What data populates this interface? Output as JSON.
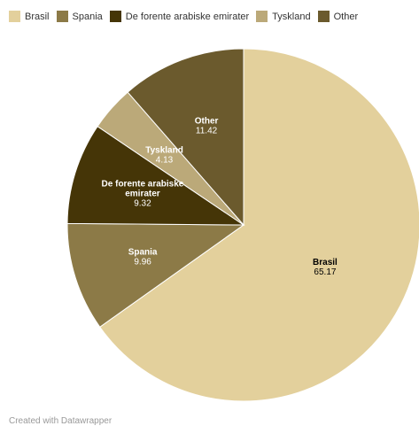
{
  "chart_data": {
    "type": "pie",
    "categories": [
      "Brasil",
      "Spania",
      "De forente arabiske emirater",
      "Tyskland",
      "Other"
    ],
    "values": [
      65.17,
      9.96,
      9.32,
      4.13,
      11.42
    ],
    "slice_label_lines": [
      [
        "Brasil"
      ],
      [
        "Spania"
      ],
      [
        "De forente arabiske",
        "emirater"
      ],
      [
        "Tyskland"
      ],
      [
        "Other"
      ]
    ],
    "value_labels": [
      "65.17",
      "9.96",
      "9.32",
      "4.13",
      "11.42"
    ],
    "colors": [
      "#e3d09c",
      "#8c7a47",
      "#453507",
      "#bba979",
      "#6b5a2d"
    ],
    "label_colors": [
      "#000000",
      "#ffffff",
      "#ffffff",
      "#ffffff",
      "#ffffff"
    ],
    "legend_placement": "top-left",
    "title": "",
    "subtitle": ""
  },
  "legend": {
    "items": [
      {
        "label": "Brasil",
        "color": "#e3d09c"
      },
      {
        "label": "Spania",
        "color": "#8c7a47"
      },
      {
        "label": "De forente arabiske emirater",
        "color": "#453507"
      },
      {
        "label": "Tyskland",
        "color": "#bba979"
      },
      {
        "label": "Other",
        "color": "#6b5a2d"
      }
    ]
  },
  "footer": {
    "text": "Created with Datawrapper"
  }
}
